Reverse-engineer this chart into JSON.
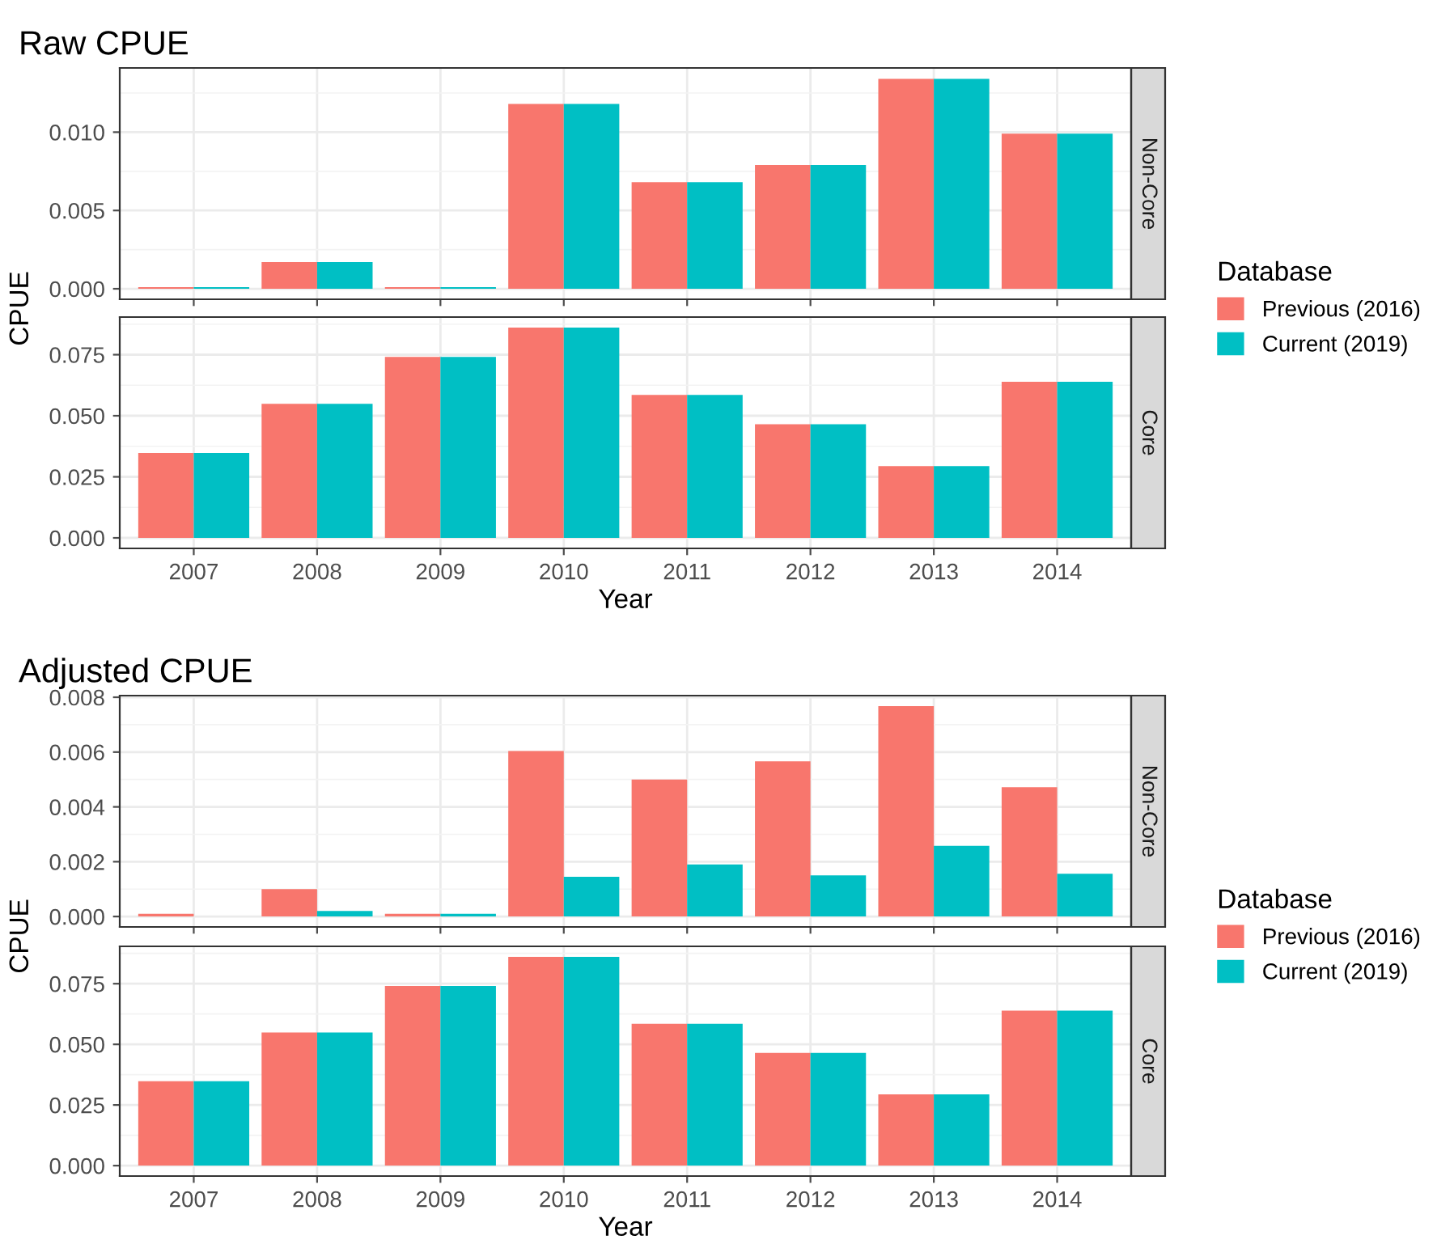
{
  "chart_data": [
    {
      "type": "bar",
      "title": "Raw CPUE",
      "ylabel": "CPUE",
      "annotations": [
        "Non-Core"
      ],
      "legend_title": "Database",
      "legend": "right",
      "grid": true,
      "tick_labels": "y",
      "categories": [
        "2007",
        "2008",
        "2009",
        "2010",
        "2011",
        "2012",
        "2013",
        "2014"
      ],
      "ylim": [
        -0.00067,
        0.0141
      ],
      "yticks": [
        {
          "value": 0,
          "label": "0.000"
        },
        {
          "value": 0.005,
          "label": "0.005"
        },
        {
          "value": 0.01,
          "label": "0.010"
        }
      ],
      "series": [
        {
          "name": "Previous (2016)",
          "color": "#f8766d",
          "values": [
            0.0001,
            0.0017,
            0.0001,
            0.0118,
            0.0068,
            0.0079,
            0.0134,
            0.0099
          ]
        },
        {
          "name": "Current (2019)",
          "color": "#00bfc4",
          "values": [
            0.0001,
            0.0017,
            0.0001,
            0.0118,
            0.0068,
            0.0079,
            0.0134,
            0.0099
          ]
        }
      ]
    },
    {
      "type": "bar",
      "xlabel": "Year",
      "annotations": [
        "Core"
      ],
      "grid": true,
      "categories": [
        "2007",
        "2008",
        "2009",
        "2010",
        "2011",
        "2012",
        "2013",
        "2014"
      ],
      "ylim": [
        -0.0043,
        0.0904
      ],
      "yticks": [
        {
          "value": 0,
          "label": "0.000"
        },
        {
          "value": 0.025,
          "label": "0.025"
        },
        {
          "value": 0.05,
          "label": "0.050"
        },
        {
          "value": 0.075,
          "label": "0.075"
        }
      ],
      "series": [
        {
          "color": "#f8766d",
          "values": [
            0.0348,
            0.0549,
            0.0741,
            0.0861,
            0.0585,
            0.0465,
            0.0294,
            0.0639
          ]
        },
        {
          "color": "#00bfc4",
          "values": [
            0.0348,
            0.0549,
            0.0741,
            0.0861,
            0.0585,
            0.0465,
            0.0294,
            0.0639
          ]
        }
      ]
    },
    {
      "type": "bar",
      "title": "Adjusted CPUE",
      "ylabel": "CPUE",
      "annotations": [
        "Non-Core"
      ],
      "legend_title": "Database",
      "legend": "right",
      "grid": true,
      "tick_labels": "y",
      "categories": [
        "2007",
        "2008",
        "2009",
        "2010",
        "2011",
        "2012",
        "2013",
        "2014"
      ],
      "ylim": [
        -0.00038,
        0.00806
      ],
      "yticks": [
        {
          "value": 0,
          "label": "0.000"
        },
        {
          "value": 0.002,
          "label": "0.002"
        },
        {
          "value": 0.004,
          "label": "0.004"
        },
        {
          "value": 0.006,
          "label": "0.006"
        },
        {
          "value": 0.008,
          "label": "0.008"
        }
      ],
      "series": [
        {
          "name": "Previous (2016)",
          "color": "#f8766d",
          "values": [
            0.0001,
            0.001,
            0.0001,
            0.00604,
            0.005,
            0.00566,
            0.00768,
            0.00472
          ]
        },
        {
          "name": "Current (2019)",
          "color": "#00bfc4",
          "values": [
            0,
            0.0002,
            0.0001,
            0.00145,
            0.0019,
            0.0015,
            0.00258,
            0.00156
          ]
        }
      ]
    },
    {
      "type": "bar",
      "xlabel": "Year",
      "annotations": [
        "Core"
      ],
      "grid": true,
      "categories": [
        "2007",
        "2008",
        "2009",
        "2010",
        "2011",
        "2012",
        "2013",
        "2014"
      ],
      "ylim": [
        -0.0043,
        0.0904
      ],
      "yticks": [
        {
          "value": 0,
          "label": "0.000"
        },
        {
          "value": 0.025,
          "label": "0.025"
        },
        {
          "value": 0.05,
          "label": "0.050"
        },
        {
          "value": 0.075,
          "label": "0.075"
        }
      ],
      "series": [
        {
          "color": "#f8766d",
          "values": [
            0.0348,
            0.0549,
            0.0741,
            0.0861,
            0.0585,
            0.0465,
            0.0294,
            0.0639
          ]
        },
        {
          "color": "#00bfc4",
          "values": [
            0.0348,
            0.0549,
            0.0741,
            0.0861,
            0.0585,
            0.0465,
            0.0294,
            0.0639
          ]
        }
      ]
    }
  ]
}
